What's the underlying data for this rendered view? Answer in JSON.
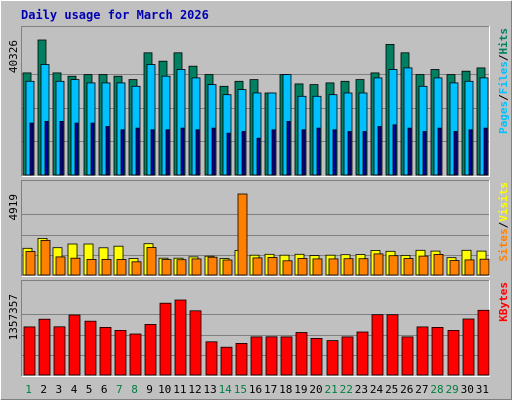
{
  "chart_data": {
    "type": "bar",
    "title": "Daily usage for March 2026",
    "x": [
      1,
      2,
      3,
      4,
      5,
      6,
      7,
      8,
      9,
      10,
      11,
      12,
      13,
      14,
      15,
      16,
      17,
      18,
      19,
      20,
      21,
      22,
      23,
      24,
      25,
      26,
      27,
      28,
      29,
      30,
      31
    ],
    "weekend_days": [
      1,
      7,
      8,
      14,
      15,
      21,
      22,
      28,
      29
    ],
    "colors": {
      "background": "#c0c0c0",
      "title": "#0000b3",
      "weekday": "#000000",
      "weekend": "#008040",
      "hits": "#008060",
      "files": "#00c0ff",
      "pages": "#0000a0",
      "visits": "#ffff00",
      "sites": "#ff8000",
      "kbytes": "#ff0000",
      "label_separator": "#000000"
    },
    "panels": [
      {
        "id": "hits-files-pages",
        "ymax_label": "40326",
        "ylim": [
          0,
          40326
        ],
        "labels": [
          {
            "text": "Hits",
            "color": "#008060"
          },
          {
            "text": "Files",
            "color": "#00c0ff"
          },
          {
            "text": "Pages",
            "color": "#00c0ff"
          }
        ],
        "series": [
          {
            "key": "hits",
            "values": [
              30500,
              40326,
              30500,
              29500,
              30000,
              30000,
              29500,
              28500,
              36500,
              34000,
              36500,
              32500,
              30000,
              26500,
              28000,
              28500,
              24500,
              30000,
              27200,
              27000,
              27500,
              28000,
              28500,
              30500,
              39000,
              36500,
              30000,
              31500,
              30000,
              31000,
              32000
            ]
          },
          {
            "key": "files",
            "values": [
              28000,
              33000,
              28000,
              28500,
              27500,
              27500,
              27500,
              26500,
              33000,
              29500,
              31500,
              29000,
              27000,
              24000,
              25500,
              24500,
              24500,
              30000,
              23500,
              23500,
              24000,
              24500,
              24500,
              29000,
              31500,
              32000,
              26500,
              29000,
              27500,
              28000,
              29000
            ]
          },
          {
            "key": "pages",
            "values": [
              15500,
              16000,
              16000,
              15500,
              15500,
              14500,
              13500,
              14000,
              13500,
              13500,
              14000,
              13500,
              14000,
              12500,
              13000,
              11000,
              13500,
              16000,
              13500,
              14000,
              13500,
              13000,
              13000,
              14500,
              15000,
              14000,
              13000,
              14000,
              13000,
              13500,
              14000
            ]
          }
        ]
      },
      {
        "id": "visits-sites",
        "ymax_label": "4919",
        "ylim": [
          0,
          4919
        ],
        "labels": [
          {
            "text": "Visits",
            "color": "#ffff00"
          },
          {
            "text": "Sites",
            "color": "#ff8000"
          }
        ],
        "series": [
          {
            "key": "visits",
            "values": [
              1620,
              2220,
              1660,
              1880,
              1880,
              1650,
              1750,
              1000,
              1900,
              1020,
              1020,
              1100,
              1140,
              1000,
              1490,
              1200,
              1260,
              1200,
              1260,
              1180,
              1200,
              1230,
              1240,
              1490,
              1440,
              1190,
              1500,
              1450,
              1050,
              1500,
              1450
            ]
          },
          {
            "key": "sites",
            "values": [
              1430,
              2100,
              1100,
              1020,
              950,
              950,
              940,
              800,
              1670,
              940,
              930,
              980,
              1080,
              910,
              4919,
              1040,
              1060,
              860,
              1000,
              980,
              980,
              990,
              990,
              1280,
              1170,
              1000,
              1150,
              1250,
              880,
              920,
              960
            ]
          }
        ]
      },
      {
        "id": "kbytes",
        "ymax_label": "1357357",
        "ylim": [
          0,
          1357357
        ],
        "labels": [
          {
            "text": "KBytes",
            "color": "#ff0000"
          }
        ],
        "series": [
          {
            "key": "kbytes",
            "values": [
              806000,
              935000,
              807000,
              1006000,
              902000,
              797000,
              748000,
              687000,
              848000,
              1203000,
              1257000,
              1075000,
              556000,
              466000,
              529000,
              638000,
              640000,
              638000,
              713000,
              614000,
              577000,
              638000,
              721000,
              1010000,
              1010000,
              638000,
              806000,
              798000,
              748000,
              939000,
              1084000
            ]
          }
        ]
      }
    ]
  }
}
